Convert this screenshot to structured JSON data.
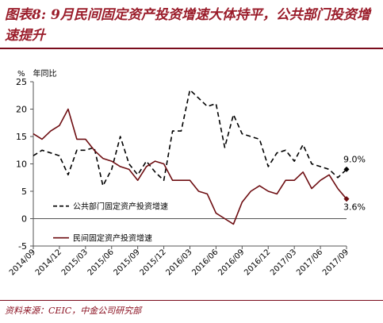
{
  "title": "图表8: 9月民间固定资产投资增速大体持平，公共部门投资增速提升",
  "unit_label": "%",
  "unit_desc": "年同比",
  "source": "资料来源：CEIC，中金公司研究部",
  "colors": {
    "public": "#000000",
    "private": "#6e0e12",
    "axis": "#555555"
  },
  "chart_data": {
    "type": "line",
    "x": [
      "2014/09",
      "2014/10",
      "2014/11",
      "2014/12",
      "2015/01",
      "2015/02",
      "2015/03",
      "2015/04",
      "2015/05",
      "2015/06",
      "2015/07",
      "2015/08",
      "2015/09",
      "2015/10",
      "2015/11",
      "2015/12",
      "2016/01",
      "2016/02",
      "2016/03",
      "2016/04",
      "2016/05",
      "2016/06",
      "2016/07",
      "2016/08",
      "2016/09",
      "2016/10",
      "2016/11",
      "2016/12",
      "2017/01",
      "2017/02",
      "2017/03",
      "2017/04",
      "2017/05",
      "2017/06",
      "2017/07",
      "2017/08",
      "2017/09"
    ],
    "xticks": [
      "2014/09",
      "2014/12",
      "2015/03",
      "2015/06",
      "2015/09",
      "2015/12",
      "2016/03",
      "2016/06",
      "2016/09",
      "2016/12",
      "2017/03",
      "2017/06",
      "2017/09"
    ],
    "ylim": [
      -5,
      25
    ],
    "yticks": [
      -5,
      0,
      5,
      10,
      15,
      20,
      25
    ],
    "series": [
      {
        "name": "公共部门固定资产投资增速",
        "style": "dashed",
        "values": [
          11.5,
          12.5,
          12,
          11.5,
          8,
          12.5,
          12.5,
          13,
          6,
          9,
          15,
          10,
          8,
          10.5,
          8.5,
          7,
          16,
          16,
          23.5,
          22,
          20.5,
          21,
          13,
          19,
          15.5,
          15,
          14.5,
          9.5,
          12,
          12.5,
          10.5,
          13.5,
          10,
          9.5,
          9,
          7.5,
          9.0
        ]
      },
      {
        "name": "民间固定资产投资增速",
        "style": "solid",
        "values": [
          15.5,
          14.5,
          16,
          17,
          20,
          14.5,
          14.5,
          12.5,
          11,
          10.5,
          9.5,
          9,
          7,
          9.5,
          10.5,
          10,
          7,
          7,
          7,
          5,
          4.5,
          1,
          0,
          -1,
          3,
          5,
          6,
          5,
          4.5,
          7,
          7,
          8.5,
          5.5,
          7,
          8,
          5.5,
          3.6
        ]
      }
    ],
    "annotations": [
      {
        "text": "9.0%",
        "series": 0
      },
      {
        "text": "3.6%",
        "series": 1
      }
    ]
  }
}
